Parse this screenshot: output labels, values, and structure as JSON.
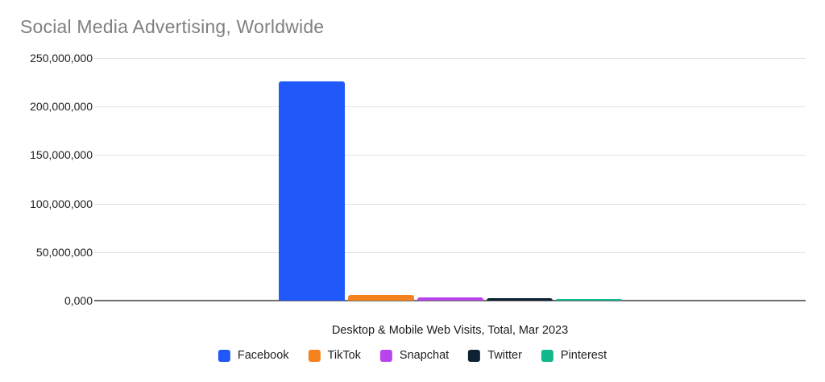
{
  "chart_data": {
    "type": "bar",
    "title": "Social Media Advertising, Worldwide",
    "xlabel": "Desktop & Mobile Web Visits, Total, Mar 2023",
    "ylabel": "",
    "ylim": [
      0,
      250000000
    ],
    "ytick_interval": 50000000,
    "ytick_labels_top_to_bottom": [
      "250,000,000",
      "200,000,000",
      "150,000,000",
      "100,000,000",
      "50,000,000",
      "0,000"
    ],
    "grid": true,
    "legend_position": "bottom",
    "categories": [
      "Desktop & Mobile Web Visits, Total, Mar 2023"
    ],
    "series": [
      {
        "name": "Facebook",
        "value": 226000000,
        "color": "#2058FA"
      },
      {
        "name": "TikTok",
        "value": 5800000,
        "color": "#F5821F"
      },
      {
        "name": "Snapchat",
        "value": 3300000,
        "color": "#B845EC"
      },
      {
        "name": "Twitter",
        "value": 2500000,
        "color": "#0F2233"
      },
      {
        "name": "Pinterest",
        "value": 1300000,
        "color": "#12B98C"
      }
    ],
    "colors": {
      "title_text": "#808080",
      "tick_text": "#1f1f1f",
      "gridline": "#e3e3e3",
      "axis_line": "#6e6e6e",
      "background": "#ffffff"
    }
  }
}
